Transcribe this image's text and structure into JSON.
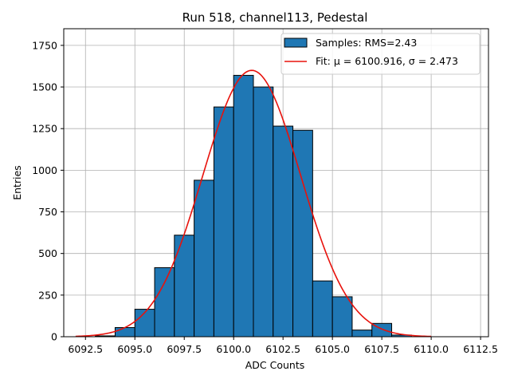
{
  "chart_data": {
    "type": "histogram",
    "title": "Run 518, channel113, Pedestal",
    "xlabel": "ADC Counts",
    "ylabel": "Entries",
    "xlim": [
      6091.4,
      6112.9
    ],
    "ylim": [
      0,
      1850
    ],
    "xticks": [
      6092.5,
      6095.0,
      6097.5,
      6100.0,
      6102.5,
      6105.0,
      6107.5,
      6110.0,
      6112.5
    ],
    "xtick_labels": [
      "6092.5",
      "6095.0",
      "6097.5",
      "6100.0",
      "6102.5",
      "6105.0",
      "6107.5",
      "6110.0",
      "6112.5"
    ],
    "yticks": [
      0,
      250,
      500,
      750,
      1000,
      1250,
      1500,
      1750
    ],
    "ytick_labels": [
      "0",
      "250",
      "500",
      "750",
      "1000",
      "1250",
      "1500",
      "1750"
    ],
    "grid": true,
    "legend_position": "top-right",
    "bins": [
      {
        "start": 6093,
        "end": 6094,
        "count": 5
      },
      {
        "start": 6094,
        "end": 6095,
        "count": 55
      },
      {
        "start": 6095,
        "end": 6096,
        "count": 165
      },
      {
        "start": 6096,
        "end": 6097,
        "count": 415
      },
      {
        "start": 6097,
        "end": 6098,
        "count": 610
      },
      {
        "start": 6098,
        "end": 6099,
        "count": 940
      },
      {
        "start": 6099,
        "end": 6100,
        "count": 1380
      },
      {
        "start": 6100,
        "end": 6101,
        "count": 1570
      },
      {
        "start": 6101,
        "end": 6102,
        "count": 1500
      },
      {
        "start": 6102,
        "end": 6103,
        "count": 1265
      },
      {
        "start": 6103,
        "end": 6104,
        "count": 1240
      },
      {
        "start": 6104,
        "end": 6105,
        "count": 335
      },
      {
        "start": 6105,
        "end": 6106,
        "count": 240
      },
      {
        "start": 6106,
        "end": 6107,
        "count": 40
      },
      {
        "start": 6107,
        "end": 6108,
        "count": 80
      },
      {
        "start": 6108,
        "end": 6109,
        "count": 10
      }
    ],
    "fit": {
      "mu": 6100.916,
      "sigma": 2.473,
      "amplitude": 1600,
      "x_range": [
        6092,
        6110
      ]
    },
    "legend": [
      {
        "label": "Samples: RMS=2.43",
        "kind": "patch"
      },
      {
        "label": "Fit: μ = 6100.916, σ = 2.473",
        "kind": "line"
      }
    ],
    "colors": {
      "bar_fill": "#1f77b4",
      "bar_edge": "#000000",
      "fit_line": "#e8120c",
      "grid": "#b0b0b0",
      "axis": "#000000"
    }
  }
}
